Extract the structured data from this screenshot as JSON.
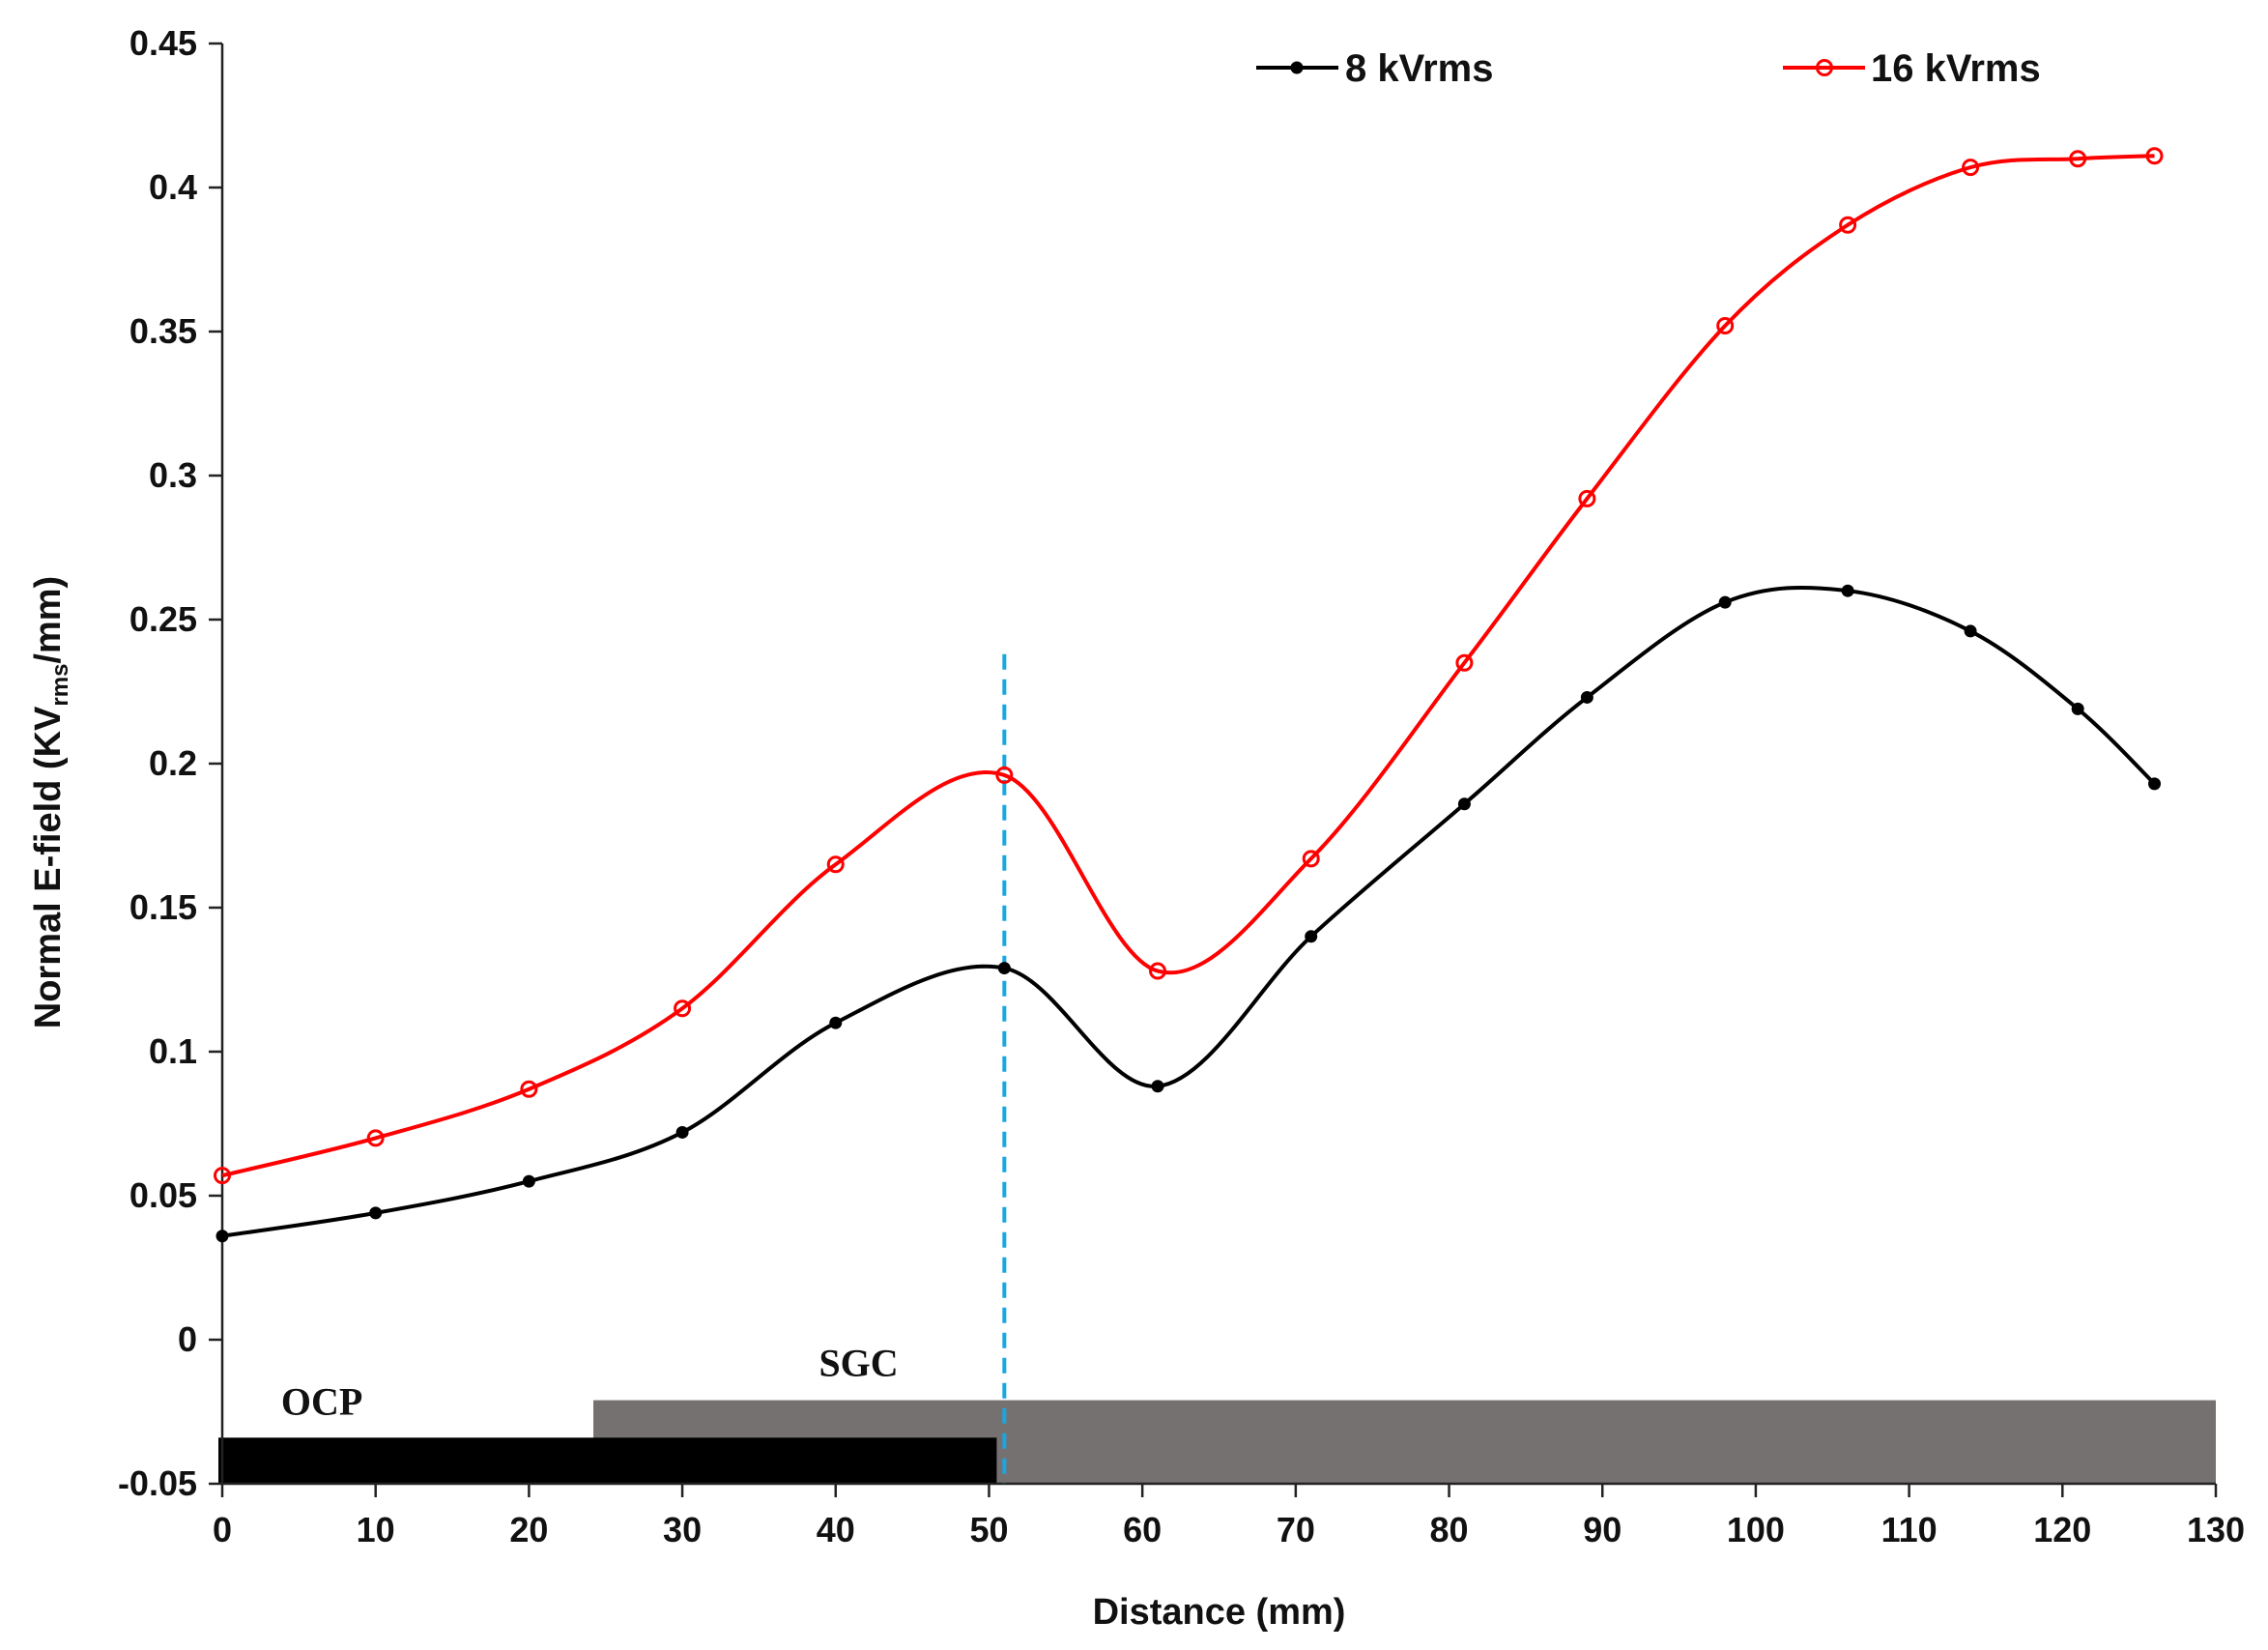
{
  "chart_data": {
    "type": "line",
    "xlabel": "Distance (mm)",
    "ylabel": {
      "prefix": "Normal E-field (KV",
      "subscript": "rms",
      "suffix": "/mm)"
    },
    "xlim": [
      0,
      130
    ],
    "ylim": [
      -0.05,
      0.45
    ],
    "x_ticks": [
      "0",
      "10",
      "20",
      "30",
      "40",
      "50",
      "60",
      "70",
      "80",
      "90",
      "100",
      "110",
      "120",
      "130"
    ],
    "y_ticks": [
      "-0.05",
      "0",
      "0.05",
      "0.1",
      "0.15",
      "0.2",
      "0.25",
      "0.3",
      "0.35",
      "0.4",
      "0.45"
    ],
    "legend_position": "top-right",
    "series": [
      {
        "name": "8 kVrms",
        "color": "#000000",
        "marker": "filled-circle",
        "x": [
          0,
          10,
          20,
          30,
          40,
          51,
          61,
          71,
          81,
          89,
          98,
          106,
          114,
          121,
          126
        ],
        "y": [
          0.036,
          0.044,
          0.055,
          0.072,
          0.11,
          0.129,
          0.088,
          0.14,
          0.186,
          0.223,
          0.256,
          0.26,
          0.246,
          0.219,
          0.193
        ]
      },
      {
        "name": "16 kVrms",
        "color": "#ff0000",
        "marker": "open-circle",
        "x": [
          0,
          10,
          20,
          30,
          40,
          51,
          61,
          71,
          81,
          89,
          98,
          106,
          114,
          121,
          126
        ],
        "y": [
          0.057,
          0.07,
          0.087,
          0.115,
          0.165,
          0.196,
          0.128,
          0.167,
          0.235,
          0.292,
          0.352,
          0.387,
          0.407,
          0.41,
          0.411
        ]
      }
    ],
    "annotations": {
      "vline": {
        "x": 51,
        "y_top": 0.238,
        "color": "#1aa6e0",
        "style": "dashed"
      },
      "regions": [
        {
          "label": "OCP",
          "x_start": 0,
          "x_end": 50.5,
          "color": "#000000"
        },
        {
          "label": "SGC",
          "x_start": 24.2,
          "x_end": 130,
          "color": "#767171"
        }
      ]
    }
  }
}
